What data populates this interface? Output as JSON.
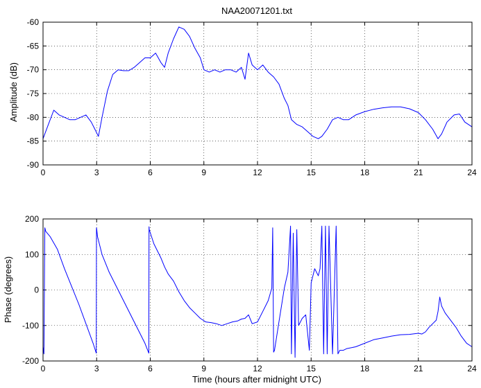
{
  "chart_data": [
    {
      "type": "line",
      "title": "NAA20071201.txt",
      "xlabel": "",
      "ylabel": "Amplitude (dB)",
      "xlim": [
        0,
        24
      ],
      "ylim": [
        -90,
        -60
      ],
      "xticks": [
        0,
        3,
        6,
        9,
        12,
        15,
        18,
        21,
        24
      ],
      "yticks": [
        -90,
        -85,
        -80,
        -75,
        -70,
        -65,
        -60
      ],
      "grid": true,
      "color": "#0000ff",
      "series": [
        {
          "x": [
            0,
            0.3,
            0.6,
            0.9,
            1.2,
            1.5,
            1.8,
            2.1,
            2.4,
            2.7,
            2.9,
            3.1,
            3.3,
            3.6,
            3.9,
            4.2,
            4.5,
            4.8,
            5.1,
            5.4,
            5.7,
            6.0,
            6.3,
            6.6,
            6.8,
            7.0,
            7.3,
            7.6,
            7.9,
            8.2,
            8.5,
            8.8,
            9.0,
            9.3,
            9.6,
            9.9,
            10.2,
            10.5,
            10.8,
            11.1,
            11.3,
            11.5,
            11.7,
            12.0,
            12.3,
            12.6,
            12.9,
            13.2,
            13.5,
            13.7,
            13.9,
            14.2,
            14.5,
            14.8,
            15.1,
            15.4,
            15.6,
            15.9,
            16.2,
            16.5,
            16.8,
            17.1,
            17.5,
            18.0,
            18.5,
            19.0,
            19.5,
            20.0,
            20.5,
            21.0,
            21.4,
            21.8,
            22.1,
            22.3,
            22.6,
            23.0,
            23.3,
            23.6,
            24.0
          ],
          "y": [
            -84.5,
            -81.5,
            -78.5,
            -79.5,
            -80,
            -80.5,
            -80.5,
            -80,
            -79.5,
            -81,
            -82.5,
            -84,
            -80,
            -74.5,
            -71,
            -70,
            -70.2,
            -70.2,
            -69.5,
            -68.5,
            -67.5,
            -67.5,
            -66.5,
            -68.5,
            -69.5,
            -66.5,
            -63.5,
            -61,
            -61.5,
            -63,
            -65.5,
            -67.5,
            -70,
            -70.5,
            -70,
            -70.5,
            -70,
            -70,
            -70.5,
            -69.5,
            -72,
            -66.5,
            -69,
            -70,
            -69,
            -70.5,
            -71.5,
            -73,
            -76,
            -77.5,
            -80.5,
            -81.5,
            -82,
            -83,
            -84,
            -84.5,
            -84,
            -82.5,
            -80.5,
            -80,
            -80.5,
            -80.5,
            -79.5,
            -78.8,
            -78.3,
            -78,
            -77.8,
            -77.8,
            -78.2,
            -79,
            -80.5,
            -82.5,
            -84.5,
            -83.5,
            -81,
            -79.5,
            -79.3,
            -81,
            -82
          ]
        }
      ]
    },
    {
      "type": "line",
      "title": "",
      "xlabel": "Time (hours after midnight UTC)",
      "ylabel": "Phase (degrees)",
      "xlim": [
        0,
        24
      ],
      "ylim": [
        -200,
        200
      ],
      "xticks": [
        0,
        3,
        6,
        9,
        12,
        15,
        18,
        21,
        24
      ],
      "yticks": [
        -200,
        -100,
        0,
        100,
        200
      ],
      "grid": true,
      "color": "#0000ff",
      "series": [
        {
          "x": [
            0,
            0.05,
            0.1,
            0.15,
            0.4,
            0.8,
            1.2,
            1.6,
            2.0,
            2.4,
            2.8,
            2.98,
            2.99,
            3.0,
            3.05,
            3.3,
            3.7,
            4.1,
            4.5,
            4.9,
            5.3,
            5.7,
            5.92,
            5.93,
            5.94,
            6.2,
            6.6,
            6.8,
            7.0,
            7.3,
            7.6,
            7.9,
            8.2,
            8.5,
            8.8,
            9.1,
            9.4,
            9.7,
            10.0,
            10.3,
            10.6,
            10.9,
            11.1,
            11.3,
            11.5,
            11.7,
            12.0,
            12.3,
            12.6,
            12.8,
            12.85,
            12.9,
            12.95,
            13.2,
            13.5,
            13.7,
            13.85,
            13.9,
            14.0,
            14.1,
            14.2,
            14.3,
            14.5,
            14.7,
            14.9,
            15.0,
            15.2,
            15.4,
            15.5,
            15.6,
            15.7,
            15.8,
            15.9,
            16.0,
            16.2,
            16.4,
            16.5,
            16.6,
            16.7,
            16.8,
            17.0,
            17.5,
            18.0,
            18.5,
            19.0,
            19.5,
            20.0,
            20.5,
            21.0,
            21.2,
            21.4,
            21.6,
            21.8,
            22.0,
            22.1,
            22.2,
            22.3,
            22.5,
            22.8,
            23.1,
            23.4,
            23.7,
            24.0
          ],
          "y": [
            -160,
            -180,
            175,
            165,
            150,
            115,
            60,
            10,
            -40,
            -95,
            -150,
            -178,
            175,
            172,
            150,
            100,
            50,
            10,
            -30,
            -70,
            -110,
            -150,
            -178,
            178,
            170,
            130,
            90,
            65,
            45,
            25,
            -5,
            -30,
            -50,
            -65,
            -80,
            -90,
            -92,
            -95,
            -100,
            -95,
            -90,
            -87,
            -82,
            -80,
            -70,
            -95,
            -90,
            -60,
            -30,
            5,
            175,
            -175,
            -170,
            -90,
            5,
            50,
            180,
            -180,
            160,
            -190,
            170,
            -100,
            -80,
            -70,
            -170,
            20,
            60,
            40,
            60,
            180,
            -180,
            180,
            -180,
            180,
            -180,
            180,
            -180,
            -170,
            -170,
            -170,
            -165,
            -160,
            -150,
            -140,
            -135,
            -130,
            -126,
            -125,
            -122,
            -124,
            -118,
            -105,
            -95,
            -85,
            -60,
            -20,
            -45,
            -65,
            -85,
            -105,
            -130,
            -150,
            -160
          ]
        }
      ]
    }
  ]
}
